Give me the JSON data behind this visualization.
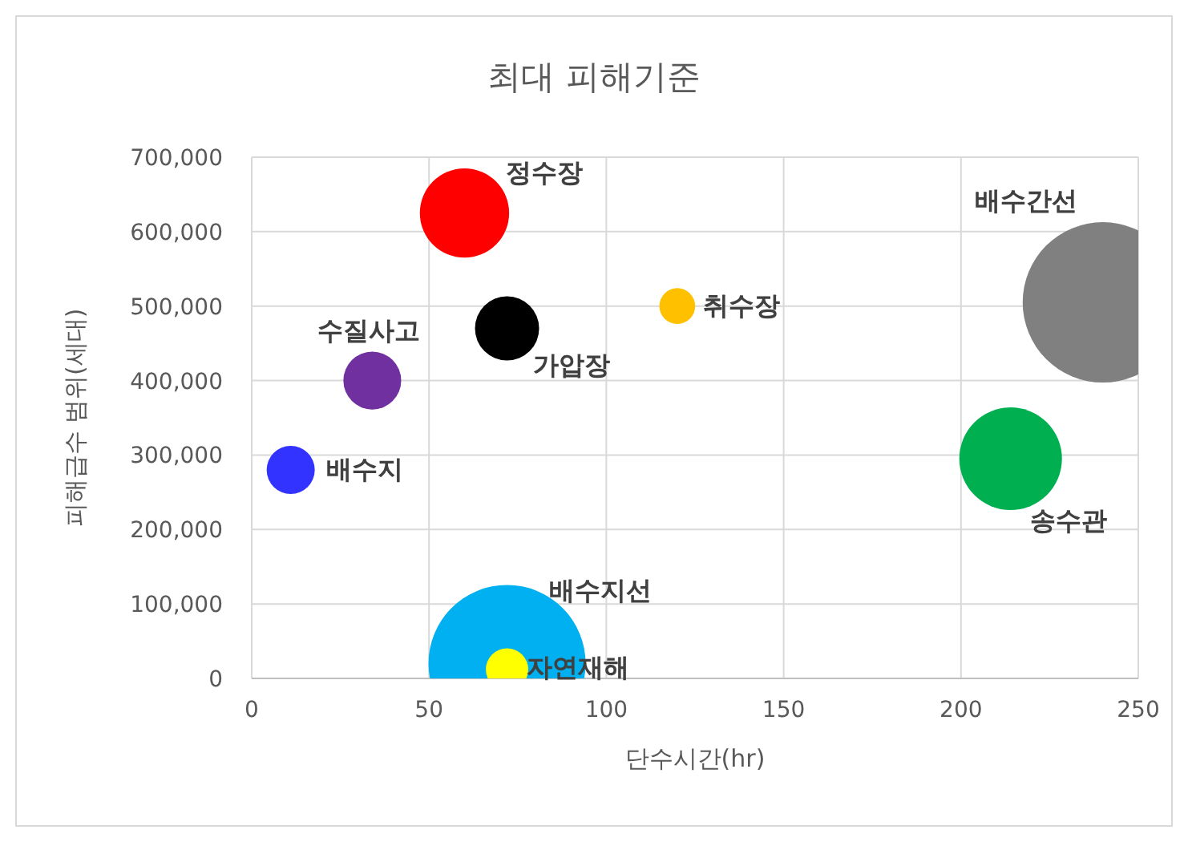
{
  "chart_data": {
    "type": "bubble",
    "title": "최대 피해기준",
    "xlabel": "단수시간(hr)",
    "ylabel": "피해급수 범위(세대)",
    "xlim": [
      0,
      250
    ],
    "xticks": [
      0,
      50,
      100,
      150,
      200,
      250
    ],
    "ylim": [
      0,
      700000
    ],
    "yticks": [
      {
        "value": 0,
        "label": "0"
      },
      {
        "value": 100000,
        "label": "100,000"
      },
      {
        "value": 200000,
        "label": "200,000"
      },
      {
        "value": 300000,
        "label": "300,000"
      },
      {
        "value": 400000,
        "label": "400,000"
      },
      {
        "value": 500000,
        "label": "500,000"
      },
      {
        "value": 600000,
        "label": "600,000"
      },
      {
        "value": 700000,
        "label": "700,000"
      }
    ],
    "grid": true,
    "legend": false,
    "series": [
      {
        "name": "배수지선",
        "color": "#00b0f0",
        "x": [
          72
        ],
        "values": [
          20000
        ],
        "sizes": [
          0.96
        ]
      },
      {
        "name": "정수장",
        "color": "#ff0000",
        "x": [
          60
        ],
        "values": [
          625000
        ],
        "sizes": [
          0.31
        ]
      },
      {
        "name": "취수장",
        "color": "#ffc000",
        "x": [
          120
        ],
        "values": [
          500000
        ],
        "sizes": [
          0.05
        ]
      },
      {
        "name": "배수간선",
        "color": "#808080",
        "x": [
          240
        ],
        "values": [
          505000
        ],
        "sizes": [
          1
        ]
      },
      {
        "name": "가압장",
        "color": "#000000",
        "x": [
          72
        ],
        "values": [
          470000
        ],
        "sizes": [
          0.16
        ]
      },
      {
        "name": "수질사고",
        "color": "#7030a0",
        "x": [
          34
        ],
        "values": [
          400000
        ],
        "sizes": [
          0.13
        ]
      },
      {
        "name": "배수지",
        "color": "#3333ff",
        "x": [
          11
        ],
        "values": [
          280000
        ],
        "sizes": [
          0.09
        ]
      },
      {
        "name": "송수관",
        "color": "#00b050",
        "x": [
          214
        ],
        "values": [
          295000
        ],
        "sizes": [
          0.41
        ]
      },
      {
        "name": "자연재해",
        "color": "#ffff00",
        "x": [
          72
        ],
        "values": [
          12000
        ],
        "sizes": [
          0.07
        ]
      }
    ]
  }
}
